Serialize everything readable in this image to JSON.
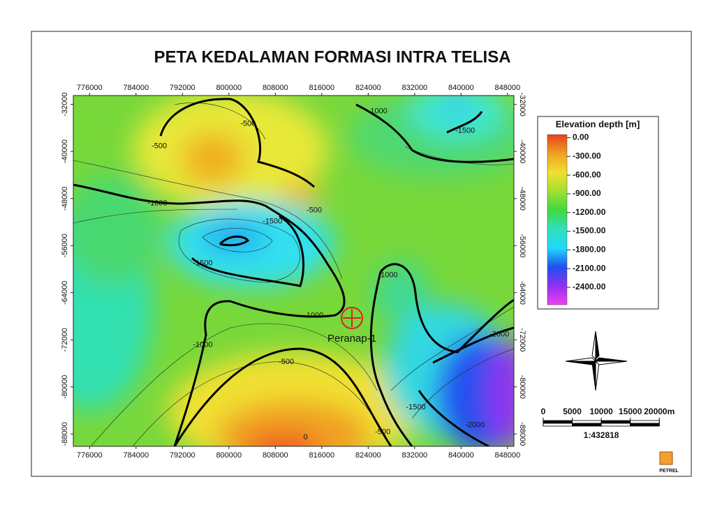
{
  "map": {
    "title": "PETA KEDALAMAN FORMASI INTRA TELISA",
    "xlim": [
      773200,
      849100
    ],
    "ylim": [
      -90100,
      -30500
    ],
    "xticks": [
      776000,
      784000,
      792000,
      800000,
      808000,
      816000,
      824000,
      832000,
      840000,
      848000
    ],
    "yticks": [
      -32000,
      -40000,
      -48000,
      -56000,
      -64000,
      -72000,
      -80000,
      -88000
    ],
    "contour_labels": [
      {
        "value": -500,
        "x": 803300,
        "y": -35300
      },
      {
        "value": -500,
        "x": 788000,
        "y": -39100
      },
      {
        "value": -500,
        "x": 814700,
        "y": -50000
      },
      {
        "value": -1000,
        "x": 787700,
        "y": -48800
      },
      {
        "value": -1000,
        "x": 825600,
        "y": -33200
      },
      {
        "value": -1500,
        "x": 840700,
        "y": -36500
      },
      {
        "value": -1500,
        "x": 807500,
        "y": -51900
      },
      {
        "value": -1500,
        "x": 795500,
        "y": -59000
      },
      {
        "value": -1000,
        "x": 814600,
        "y": -67900
      },
      {
        "value": -1000,
        "x": 827400,
        "y": -61000
      },
      {
        "value": -1000,
        "x": 795500,
        "y": -72900
      },
      {
        "value": -500,
        "x": 809900,
        "y": -75800
      },
      {
        "value": -500,
        "x": 826500,
        "y": -87700
      },
      {
        "value": 0,
        "x": 813200,
        "y": -88600
      },
      {
        "value": -1500,
        "x": 832200,
        "y": -83500
      },
      {
        "value": -2000,
        "x": 842400,
        "y": -86500
      },
      {
        "value": -2000,
        "x": 846600,
        "y": -71100
      }
    ],
    "well": {
      "name": "Peranap-1",
      "x": 821200,
      "y": -68300,
      "color": "#e02020"
    },
    "legend": {
      "title": "Elevation depth [m]",
      "lim": [
        50,
        -2680
      ],
      "ticks": [
        {
          "value": 0,
          "label": "0.00"
        },
        {
          "value": -300,
          "label": "-300.00"
        },
        {
          "value": -600,
          "label": "-600.00"
        },
        {
          "value": -900,
          "label": "-900.00"
        },
        {
          "value": -1200,
          "label": "-1200.00"
        },
        {
          "value": -1500,
          "label": "-1500.00"
        },
        {
          "value": -1800,
          "label": "-1800.00"
        },
        {
          "value": -2100,
          "label": "-2100.00"
        },
        {
          "value": -2400,
          "label": "-2400.00"
        }
      ],
      "colors": [
        "#e8401c",
        "#f0a020",
        "#f0e030",
        "#a0e030",
        "#40d840",
        "#30e0c0",
        "#20d8f8",
        "#2050f0",
        "#9030f0",
        "#f040f0"
      ]
    },
    "scale_bar": {
      "ticks": [
        0,
        5000,
        10000,
        15000,
        {
          "value": 20000,
          "label": "20000m"
        }
      ],
      "ratio": "1:432818"
    },
    "logo": "PETREL"
  }
}
